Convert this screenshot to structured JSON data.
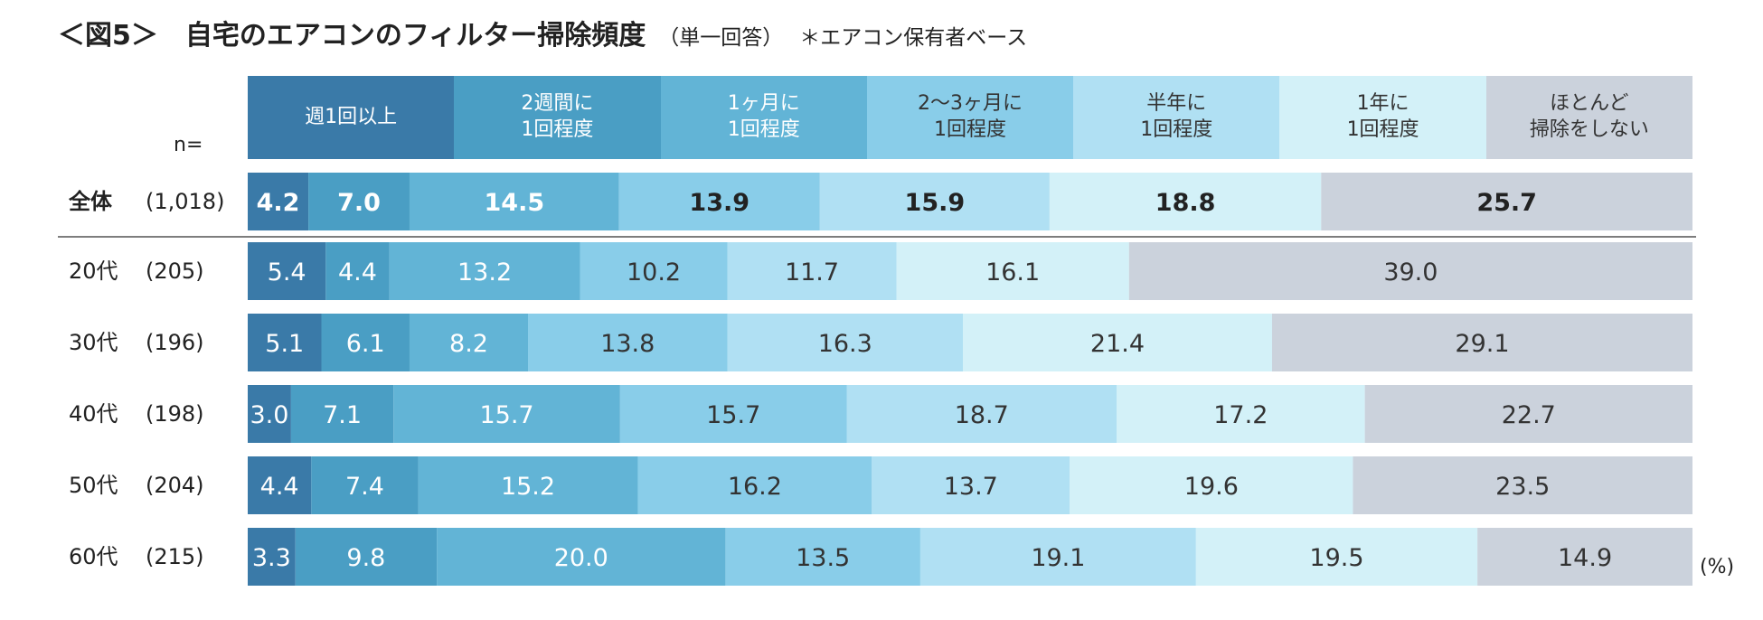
{
  "title": "＜図5＞　自宅のエアコンのフィルター掃除頻度",
  "subtitle": "（単一回答）",
  "note": "＊エアコン保有者ベース",
  "n_label": "n=",
  "unit": "(%)",
  "colors": [
    "#3a7aa8",
    "#4a9ec4",
    "#62b4d6",
    "#89cde9",
    "#b0e0f3",
    "#d3f1f8",
    "#cbd2dc"
  ],
  "category_headers": [
    "週1回以上",
    "2週間に\n1回程度",
    "1ヶ月に\n1回程度",
    "2〜3ヶ月に\n1回程度",
    "半年に\n1回程度",
    "1年に\n1回程度",
    "ほとんど\n掃除をしない"
  ],
  "chart_data": {
    "type": "bar",
    "orientation": "horizontal",
    "stacked": true,
    "percent_scale": [
      0,
      100
    ],
    "categories": [
      "全体",
      "20代",
      "30代",
      "40代",
      "50代",
      "60代"
    ],
    "n": [
      "(1,018)",
      "(205)",
      "(196)",
      "(198)",
      "(204)",
      "(215)"
    ],
    "series": [
      {
        "name": "週1回以上",
        "values": [
          4.2,
          5.4,
          5.1,
          3.0,
          4.4,
          3.3
        ]
      },
      {
        "name": "2週間に1回程度",
        "values": [
          7.0,
          4.4,
          6.1,
          7.1,
          7.4,
          9.8
        ]
      },
      {
        "name": "1ヶ月に1回程度",
        "values": [
          14.5,
          13.2,
          8.2,
          15.7,
          15.2,
          20.0
        ]
      },
      {
        "name": "2〜3ヶ月に1回程度",
        "values": [
          13.9,
          10.2,
          13.8,
          15.7,
          16.2,
          13.5
        ]
      },
      {
        "name": "半年に1回程度",
        "values": [
          15.9,
          11.7,
          16.3,
          18.7,
          13.7,
          19.1
        ]
      },
      {
        "name": "1年に1回程度",
        "values": [
          18.8,
          16.1,
          21.4,
          17.2,
          19.6,
          19.5
        ]
      },
      {
        "name": "ほとんど掃除をしない",
        "values": [
          25.7,
          39.0,
          29.1,
          22.7,
          23.5,
          14.9
        ]
      }
    ]
  }
}
